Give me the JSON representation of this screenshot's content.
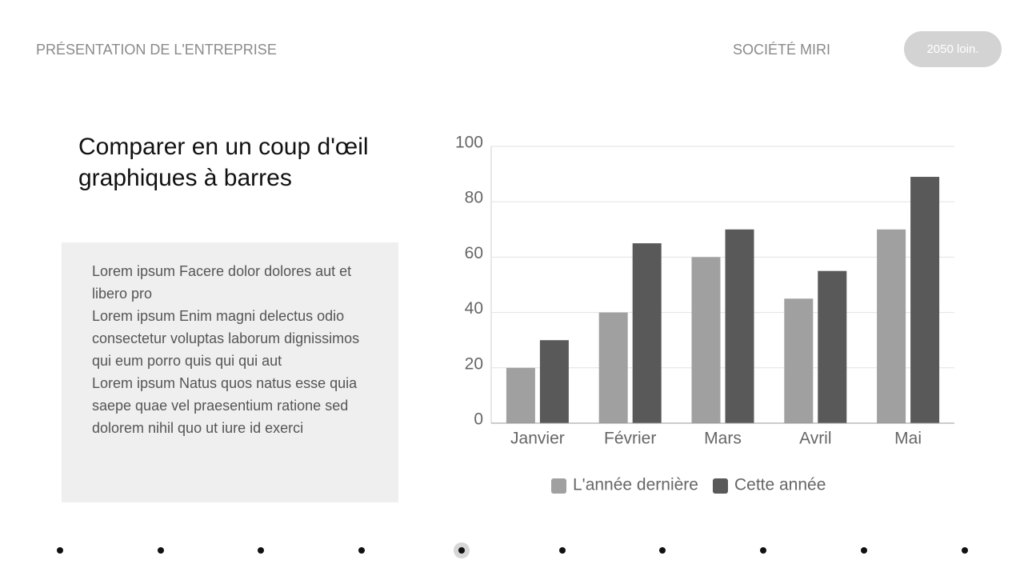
{
  "header": {
    "section": "PRÉSENTATION DE L'ENTREPRISE",
    "company": "SOCIÉTÉ MIRI",
    "button": "2050 loin."
  },
  "title": {
    "lines": [
      "Comparer en un coup d'œil",
      "graphiques à barres"
    ]
  },
  "body": {
    "paragraphs": [
      "Lorem ipsum Facere dolor dolores aut et libero pro",
      "Lorem ipsum Enim magni delectus odio consectetur voluptas laborum dignissimos qui eum porro quis qui qui aut",
      "Lorem ipsum Natus quos natus esse quia saepe quae vel praesentium ratione sed dolorem nihil quo ut iure id exerci"
    ]
  },
  "chart_data": {
    "type": "bar",
    "categories": [
      "Janvier",
      "Février",
      "Mars",
      "Avril",
      "Mai"
    ],
    "series": [
      {
        "name": "L'année dernière",
        "color": "#a0a0a0",
        "values": [
          20,
          40,
          60,
          45,
          70
        ]
      },
      {
        "name": "Cette année",
        "color": "#595959",
        "values": [
          30,
          65,
          70,
          55,
          89
        ]
      }
    ],
    "ylim": [
      0,
      100
    ],
    "yticks": [
      0,
      20,
      40,
      60,
      80,
      100
    ],
    "grid": true,
    "legend": "bottom"
  }
}
